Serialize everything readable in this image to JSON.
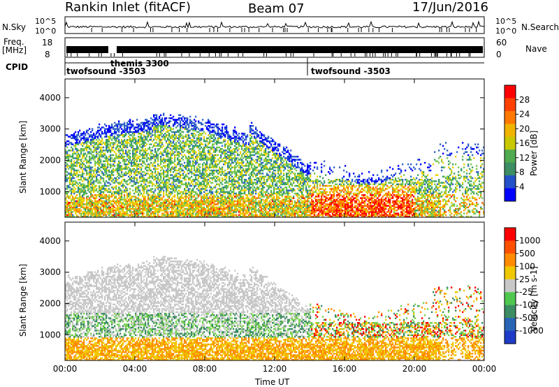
{
  "header": {
    "station": "Rankin Inlet (fitACF)",
    "beam": "Beam 07",
    "date": "17/Jun/2016"
  },
  "status_panels": {
    "nsky_label": "N.Sky",
    "nsky_ticks": [
      "10^5",
      "10^0"
    ],
    "nsearch_label": "N.Search",
    "nsearch_ticks": [
      "10^5",
      "10^0"
    ],
    "freq_label_line1": "Freq.",
    "freq_label_line2": "[MHz]",
    "freq_ticks": [
      "18",
      "8"
    ],
    "nave_label": "Nave",
    "nave_ticks": [
      "60",
      "0"
    ],
    "cpid_label": "CPID",
    "cpid_segments": [
      {
        "name": "twofsound -3503",
        "start_hour": 0.0
      },
      {
        "name": "themis 3300",
        "start_hour": 2.3
      },
      {
        "name": "twofsound -3503",
        "start_hour": 14.0
      }
    ]
  },
  "chart_data": [
    {
      "type": "heatmap",
      "title": "",
      "xlabel": "",
      "ylabel": "Slant Range [km]",
      "xlim": [
        0,
        24
      ],
      "ylim": [
        180,
        4600
      ],
      "x_ticks": [
        "00:00",
        "04:00",
        "08:00",
        "12:00",
        "16:00",
        "20:00",
        "00:00"
      ],
      "y_ticks": [
        1000,
        2000,
        3000,
        4000
      ],
      "colorbar": {
        "label": "Power [dB]",
        "ticks": [
          "28",
          "24",
          "20",
          "16",
          "12",
          "8",
          "4"
        ],
        "colors": [
          "#0000ff",
          "#2450c8",
          "#3c8c64",
          "#50aa50",
          "#c8c800",
          "#f0b400",
          "#ff7800",
          "#ff4000",
          "#ff0000"
        ]
      }
    },
    {
      "type": "heatmap",
      "title": "",
      "xlabel": "Time UT",
      "ylabel": "Slant Range [km]",
      "xlim": [
        0,
        24
      ],
      "ylim": [
        180,
        4600
      ],
      "x_ticks": [
        "00:00",
        "04:00",
        "08:00",
        "12:00",
        "16:00",
        "20:00",
        "00:00"
      ],
      "y_ticks": [
        1000,
        2000,
        3000,
        4000
      ],
      "colorbar": {
        "label": "Velocity [m s-1]",
        "ticks": [
          "1000",
          "500",
          "100",
          "25",
          "-25",
          "-100",
          "-500",
          "-1000"
        ],
        "colors": [
          "#1e3cc8",
          "#2864b4",
          "#3c8c64",
          "#50c850",
          "#c8c8c8",
          "#f0c800",
          "#ff8c00",
          "#ff5000",
          "#ff0000"
        ]
      }
    }
  ],
  "colors": {
    "power_ramp": [
      "#0000ff",
      "#3264c8",
      "#3ca064",
      "#78c850",
      "#e6d200",
      "#ffa000",
      "#ff6400",
      "#ff0000"
    ],
    "velocity_ramp": [
      "#1e3cc8",
      "#3c8c64",
      "#78d250",
      "#c8c8c8",
      "#f0c800",
      "#ff8c00",
      "#ff0000"
    ],
    "ground_scatter": "#c8c8c8"
  },
  "xaxis_title": "Time UT"
}
